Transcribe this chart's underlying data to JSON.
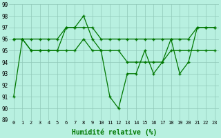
{
  "x": [
    0,
    1,
    2,
    3,
    4,
    5,
    6,
    7,
    8,
    9,
    10,
    11,
    12,
    13,
    14,
    15,
    16,
    17,
    18,
    19,
    20,
    21,
    22,
    23
  ],
  "line1": [
    91,
    96,
    95,
    95,
    95,
    95,
    97,
    97,
    98,
    96,
    95,
    91,
    90,
    93,
    93,
    95,
    93,
    94,
    96,
    93,
    94,
    97,
    97,
    97
  ],
  "line2": [
    96,
    96,
    96,
    96,
    96,
    96,
    97,
    97,
    97,
    97,
    96,
    96,
    96,
    96,
    96,
    96,
    96,
    96,
    96,
    96,
    96,
    97,
    97,
    97
  ],
  "line3": [
    96,
    96,
    95,
    95,
    95,
    95,
    95,
    95,
    96,
    95,
    95,
    95,
    95,
    94,
    94,
    94,
    94,
    94,
    95,
    95,
    95,
    95,
    95,
    95
  ],
  "xlabel": "Humidité relative (%)",
  "ylim": [
    89,
    99
  ],
  "xlim": [
    -0.5,
    23.5
  ],
  "yticks": [
    89,
    90,
    91,
    92,
    93,
    94,
    95,
    96,
    97,
    98,
    99
  ],
  "xticks": [
    0,
    1,
    2,
    3,
    4,
    5,
    6,
    7,
    8,
    9,
    10,
    11,
    12,
    13,
    14,
    15,
    16,
    17,
    18,
    19,
    20,
    21,
    22,
    23
  ],
  "line_color": "#007700",
  "marker": "+",
  "bg_color": "#b8f0e0",
  "grid_color": "#90c8b8",
  "axes_bg": "#b8f0e0"
}
